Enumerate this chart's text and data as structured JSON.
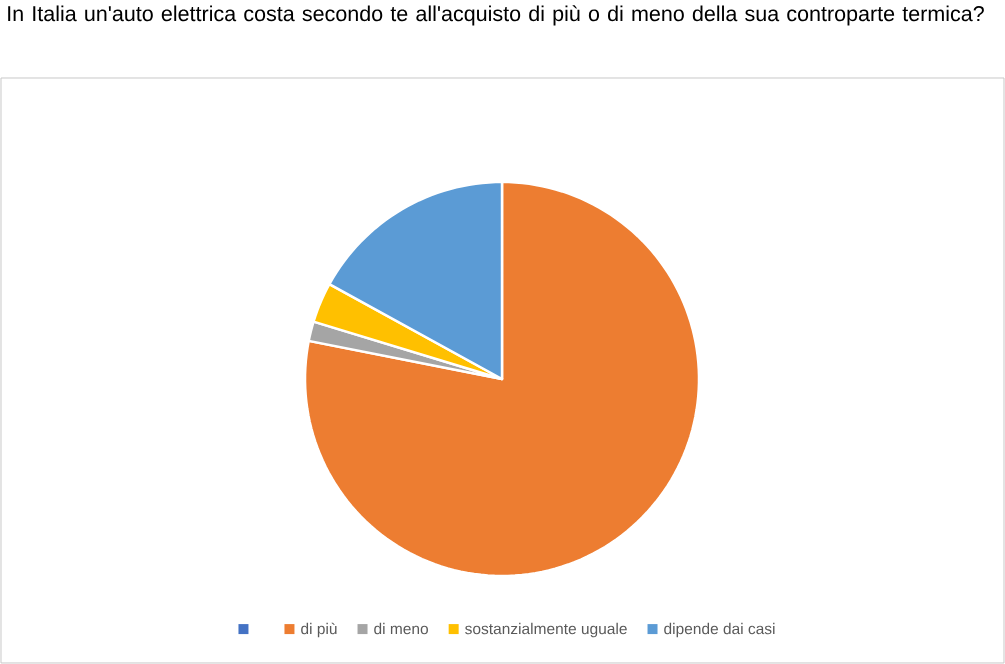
{
  "chart_data": {
    "type": "pie",
    "title": "In Italia un'auto elettrica costa secondo te all'acquisto di più o di meno della sua controparte termica?",
    "categories": [
      null,
      "di più",
      "di meno",
      "sostanzialmente uguale",
      "dipende dai casi"
    ],
    "values": [
      0,
      78.1,
      1.6,
      3.3,
      17.0
    ],
    "colors": [
      "#4472c4",
      "#ed7d31",
      "#a5a5a5",
      "#ffc000",
      "#5b9bd5"
    ],
    "legend": "bottom"
  }
}
